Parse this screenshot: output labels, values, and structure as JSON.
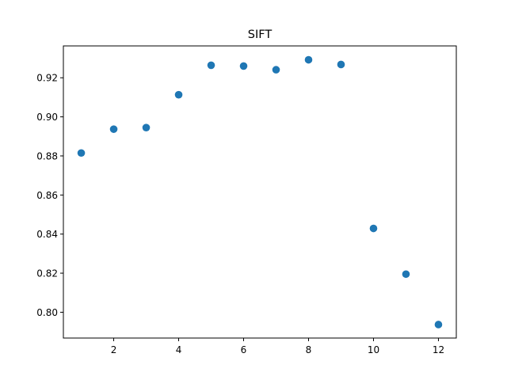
{
  "chart_data": {
    "type": "scatter",
    "title": "SIFT",
    "xlabel": "",
    "ylabel": "",
    "x": [
      1,
      2,
      3,
      4,
      5,
      6,
      7,
      8,
      9,
      10,
      11,
      12
    ],
    "y": [
      0.8815,
      0.8937,
      0.8945,
      0.9113,
      0.9264,
      0.926,
      0.9241,
      0.9292,
      0.9268,
      0.8429,
      0.8195,
      0.7937
    ],
    "xlim": [
      0.45,
      12.55
    ],
    "ylim": [
      0.7868,
      0.9363
    ],
    "xticks": [
      2,
      4,
      6,
      8,
      10,
      12
    ],
    "xtick_labels": [
      "2",
      "4",
      "6",
      "8",
      "10",
      "12"
    ],
    "yticks": [
      0.8,
      0.82,
      0.84,
      0.86,
      0.88,
      0.9,
      0.92
    ],
    "ytick_labels": [
      "0.80",
      "0.82",
      "0.84",
      "0.86",
      "0.88",
      "0.90",
      "0.92"
    ],
    "marker_color": "#1f77b4",
    "grid": false,
    "legend": "none"
  }
}
